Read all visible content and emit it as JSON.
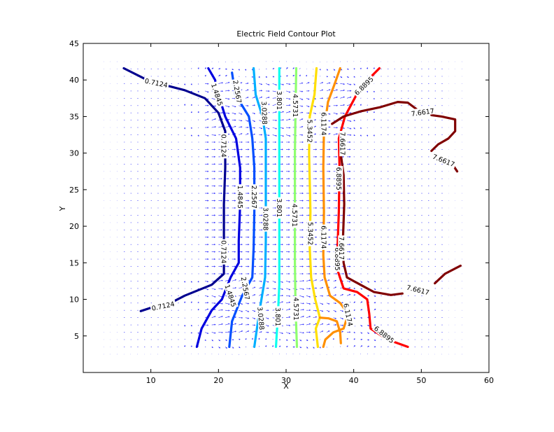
{
  "chart_data": {
    "type": "contour",
    "title": "Electric Field Contour Plot",
    "xlabel": "X",
    "ylabel": "Y",
    "xlim": [
      0,
      60
    ],
    "ylim": [
      0,
      45
    ],
    "xticks": [
      "10",
      "20",
      "30",
      "40",
      "50",
      "60"
    ],
    "yticks": [
      "5",
      "10",
      "15",
      "20",
      "25",
      "30",
      "35",
      "40",
      "45"
    ],
    "grid": false,
    "quiver": {
      "color": "#0000ff",
      "x_range": [
        3,
        56
      ],
      "y_range": [
        2.5,
        43
      ],
      "step": 1
    },
    "levels": [
      {
        "value": 0.7124,
        "color": "#00008f",
        "segments": [
          [
            [
              6,
              41.6
            ],
            [
              9,
              40.2
            ],
            [
              12.5,
              39.2
            ],
            [
              15,
              38.6
            ],
            [
              18,
              37.5
            ],
            [
              20,
              35.5
            ],
            [
              21,
              33
            ],
            [
              21,
              28
            ],
            [
              20.8,
              23
            ],
            [
              20.8,
              18
            ],
            [
              20.8,
              13.5
            ],
            [
              19,
              12
            ],
            [
              15,
              10.5
            ],
            [
              12.5,
              9.3
            ]
          ],
          [
            [
              8.5,
              8.4
            ],
            [
              10.5,
              9
            ]
          ]
        ],
        "labels": [
          {
            "text": "0.7124",
            "x": 10.8,
            "y": 39.6,
            "angle": 12
          },
          {
            "text": "0.7124",
            "x": 20.8,
            "y": 31,
            "angle": 90
          },
          {
            "text": "0.7124",
            "x": 20.8,
            "y": 16.5,
            "angle": 90
          },
          {
            "text": "0.7124",
            "x": 11.8,
            "y": 9.1,
            "angle": -12
          }
        ]
      },
      {
        "value": 1.4845,
        "color": "#0000df",
        "segments": [
          [
            [
              18.5,
              41.6
            ],
            [
              19.5,
              40
            ],
            [
              20,
              38
            ],
            [
              21,
              35
            ],
            [
              22.6,
              32
            ],
            [
              23.2,
              28
            ],
            [
              23.2,
              23
            ],
            [
              23,
              18
            ],
            [
              23,
              15
            ],
            [
              21.8,
              13
            ],
            [
              20.5,
              10
            ],
            [
              19,
              8.5
            ],
            [
              17.5,
              6
            ],
            [
              16.8,
              3.5
            ]
          ]
        ],
        "labels": [
          {
            "text": "1.4845",
            "x": 19.8,
            "y": 38,
            "angle": 72
          },
          {
            "text": "1.4845",
            "x": 23.2,
            "y": 24,
            "angle": 90
          },
          {
            "text": "1.4845",
            "x": 21.8,
            "y": 10.5,
            "angle": 72
          }
        ]
      },
      {
        "value": 2.2567,
        "color": "#004fff",
        "segments": [
          [
            [
              22,
              41
            ],
            [
              22.5,
              38
            ],
            [
              24.5,
              35
            ],
            [
              25,
              32
            ],
            [
              25.3,
              28
            ],
            [
              25.3,
              22
            ],
            [
              25.2,
              17
            ],
            [
              25,
              13
            ],
            [
              23.5,
              10.5
            ],
            [
              22,
              7
            ],
            [
              21.6,
              3.5
            ]
          ]
        ],
        "labels": [
          {
            "text": "2.2567",
            "x": 22.8,
            "y": 38.4,
            "angle": 80
          },
          {
            "text": "2.2567",
            "x": 25.3,
            "y": 24,
            "angle": 90
          },
          {
            "text": "2.2567",
            "x": 24,
            "y": 11.5,
            "angle": 80
          }
        ]
      },
      {
        "value": 3.0288,
        "color": "#00afff",
        "segments": [
          [
            [
              25.2,
              41.6
            ],
            [
              25.5,
              38
            ],
            [
              26.5,
              35
            ],
            [
              27,
              32
            ],
            [
              27,
              25
            ],
            [
              27,
              18
            ],
            [
              26.9,
              13
            ],
            [
              26,
              8
            ],
            [
              25.3,
              3.5
            ]
          ]
        ],
        "labels": [
          {
            "text": "3.0288",
            "x": 26.8,
            "y": 35.5,
            "angle": 88
          },
          {
            "text": "3.0288",
            "x": 27,
            "y": 21,
            "angle": 90
          },
          {
            "text": "3.0288",
            "x": 26.3,
            "y": 7.4,
            "angle": 85
          }
        ]
      },
      {
        "value": 3.801,
        "color": "#0fffef",
        "segments": [
          [
            [
              29,
              41.6
            ],
            [
              29,
              36
            ],
            [
              29,
              28
            ],
            [
              29,
              22
            ],
            [
              29,
              18
            ],
            [
              29,
              12
            ],
            [
              28.8,
              8
            ],
            [
              28.5,
              3.5
            ]
          ]
        ],
        "labels": [
          {
            "text": "3.801",
            "x": 29,
            "y": 37.2,
            "angle": 90
          },
          {
            "text": "3.801",
            "x": 29,
            "y": 22.5,
            "angle": 90
          },
          {
            "text": "3.801",
            "x": 28.8,
            "y": 7.6,
            "angle": 90
          }
        ]
      },
      {
        "value": 4.5731,
        "color": "#8fff6f",
        "segments": [
          [
            [
              31.5,
              41.6
            ],
            [
              31.4,
              36
            ],
            [
              31.3,
              30
            ],
            [
              31.3,
              22
            ],
            [
              31.3,
              15
            ],
            [
              31.4,
              9
            ],
            [
              31.6,
              3.5
            ]
          ]
        ],
        "labels": [
          {
            "text": "4.5731",
            "x": 31.4,
            "y": 36.5,
            "angle": 90
          },
          {
            "text": "4.5731",
            "x": 31.3,
            "y": 21.5,
            "angle": 90
          },
          {
            "text": "4.5731",
            "x": 31.5,
            "y": 8.7,
            "angle": 90
          }
        ]
      },
      {
        "value": 5.3452,
        "color": "#ffdf00",
        "segments": [
          [
            [
              34.5,
              41.6
            ],
            [
              34.2,
              38
            ],
            [
              33.5,
              35
            ],
            [
              33.4,
              30
            ],
            [
              33.6,
              22
            ],
            [
              33.5,
              17
            ],
            [
              33.7,
              13
            ],
            [
              34.3,
              10
            ],
            [
              35,
              7.5
            ],
            [
              34.4,
              6
            ],
            [
              34.7,
              3.5
            ]
          ]
        ],
        "labels": [
          {
            "text": "5.3452",
            "x": 33.5,
            "y": 33,
            "angle": 90
          },
          {
            "text": "5.3452",
            "x": 33.6,
            "y": 19,
            "angle": 90
          }
        ]
      },
      {
        "value": 6.1174,
        "color": "#ff8f00",
        "segments": [
          [
            [
              38,
              41.6
            ],
            [
              37.2,
              39.5
            ],
            [
              36.2,
              37
            ],
            [
              35.6,
              33
            ],
            [
              35.5,
              28
            ],
            [
              35.6,
              22
            ],
            [
              35.5,
              16
            ],
            [
              35.7,
              13
            ],
            [
              36.5,
              10.5
            ],
            [
              38,
              9.5
            ],
            [
              39.2,
              8
            ],
            [
              38.5,
              6
            ],
            [
              37,
              5.5
            ],
            [
              35.8,
              4.5
            ],
            [
              35.5,
              3.5
            ]
          ],
          [
            [
              35,
              7.5
            ],
            [
              36.3,
              7.4
            ],
            [
              37.5,
              7
            ],
            [
              38,
              5.5
            ],
            [
              38.1,
              4
            ]
          ]
        ],
        "labels": [
          {
            "text": "6.1174",
            "x": 35.6,
            "y": 34,
            "angle": 90
          },
          {
            "text": "6.1174",
            "x": 35.6,
            "y": 18.5,
            "angle": 90
          },
          {
            "text": "6.1174",
            "x": 39.2,
            "y": 7.9,
            "angle": 78
          }
        ]
      },
      {
        "value": 6.8895,
        "color": "#ff0000",
        "segments": [
          [
            [
              43.8,
              41.6
            ],
            [
              41,
              39
            ],
            [
              38.7,
              35
            ],
            [
              37.8,
              32
            ],
            [
              37.9,
              28
            ],
            [
              37.8,
              22
            ],
            [
              37.6,
              17
            ],
            [
              37.6,
              14
            ],
            [
              38.5,
              11.5
            ],
            [
              40.5,
              11
            ],
            [
              42,
              10
            ],
            [
              42.3,
              8
            ],
            [
              42.5,
              6
            ],
            [
              45,
              4.5
            ],
            [
              48,
              3.5
            ]
          ]
        ],
        "labels": [
          {
            "text": "6.8895",
            "x": 41.5,
            "y": 39.2,
            "angle": -44
          },
          {
            "text": "6.8895",
            "x": 37.8,
            "y": 26.5,
            "angle": 90
          },
          {
            "text": "6.8895",
            "x": 37.6,
            "y": 15.5,
            "angle": 90
          },
          {
            "text": "6.8895",
            "x": 44.5,
            "y": 5.2,
            "angle": 38
          }
        ]
      },
      {
        "value": 7.6617,
        "color": "#800000",
        "segments": [
          [
            [
              36.8,
              34
            ],
            [
              38.5,
              35
            ],
            [
              41,
              35.7
            ],
            [
              44,
              36.3
            ],
            [
              46.5,
              37
            ],
            [
              48,
              36.9
            ],
            [
              49.3,
              36
            ]
          ],
          [
            [
              51.5,
              35.2
            ],
            [
              53,
              35
            ],
            [
              55,
              34.6
            ],
            [
              55,
              33
            ],
            [
              54,
              32
            ],
            [
              52.5,
              31.2
            ],
            [
              51.5,
              30.3
            ]
          ],
          [
            [
              54.8,
              28.2
            ],
            [
              55.3,
              27.5
            ]
          ],
          [
            [
              38,
              30.5
            ],
            [
              38.5,
              27
            ],
            [
              38.6,
              23
            ],
            [
              38.4,
              18
            ],
            [
              38.5,
              15
            ],
            [
              39,
              13
            ],
            [
              41,
              12
            ],
            [
              43,
              11
            ],
            [
              45.5,
              10.6
            ],
            [
              47.2,
              10.8
            ]
          ],
          [
            [
              52,
              12.2
            ],
            [
              53.5,
              13.5
            ],
            [
              55.8,
              14.6
            ]
          ]
        ],
        "labels": [
          {
            "text": "7.6617",
            "x": 50.2,
            "y": 35.6,
            "angle": -8
          },
          {
            "text": "7.6617",
            "x": 53.3,
            "y": 29,
            "angle": 22
          },
          {
            "text": "7.6617",
            "x": 38.4,
            "y": 31.3,
            "angle": 90
          },
          {
            "text": "7.6617",
            "x": 38.2,
            "y": 17,
            "angle": 90
          },
          {
            "text": "7.6617",
            "x": 49.5,
            "y": 11.3,
            "angle": 14
          }
        ]
      }
    ]
  }
}
